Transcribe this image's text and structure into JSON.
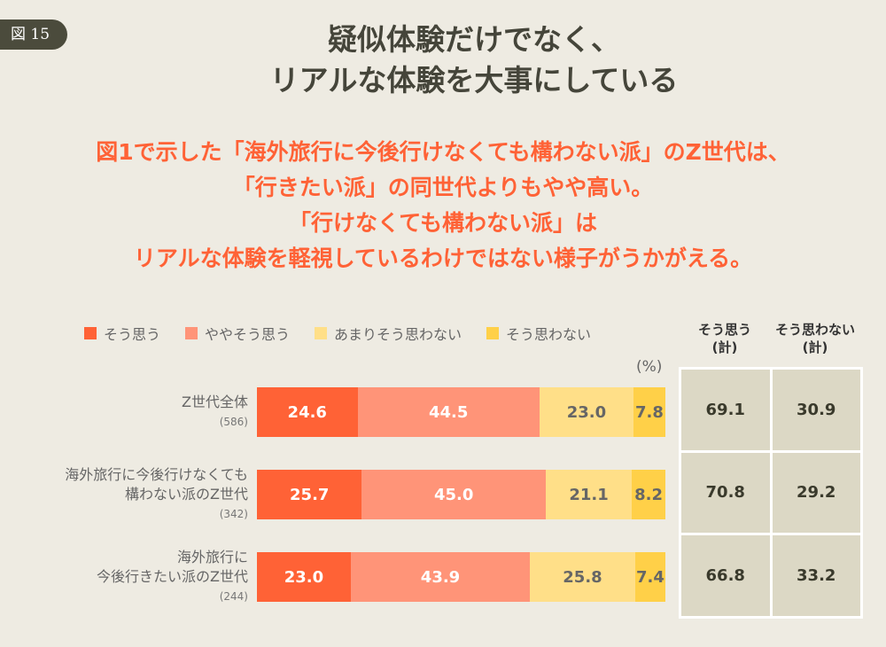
{
  "badge": "図 15",
  "title": [
    "疑似体験だけでなく、",
    "リアルな体験を大事にしている"
  ],
  "subtitle": [
    "図1で示した「海外旅行に今後行けなくても構わない派」のZ世代は、",
    "「行きたい派」の同世代よりもやや高い。",
    "「行けなくても構わない派」は",
    "リアルな体験を軽視しているわけではない様子がうかがえる。"
  ],
  "colors": {
    "background": "#EEEBE2",
    "accent": "#FF6236"
  },
  "chart_data": {
    "type": "bar",
    "stacked": true,
    "orientation": "horizontal",
    "unit": "(%)",
    "series": [
      {
        "name": "そう思う",
        "color": "#FF6236",
        "values": [
          24.6,
          25.7,
          23.0
        ]
      },
      {
        "name": "ややそう思う",
        "color": "#FF9478",
        "values": [
          44.5,
          45.0,
          43.9
        ]
      },
      {
        "name": "あまりそう思わない",
        "color": "#FFDF88",
        "values": [
          23.0,
          21.1,
          25.8
        ]
      },
      {
        "name": "そう思わない",
        "color": "#FFD048",
        "values": [
          7.8,
          8.2,
          7.4
        ]
      }
    ],
    "categories": [
      {
        "label": [
          "Z世代全体"
        ],
        "n": "(586)"
      },
      {
        "label": [
          "海外旅行に今後行けなくても",
          "構わない派のZ世代"
        ],
        "n": "(342)"
      },
      {
        "label": [
          "海外旅行に",
          "今後行きたい派のZ世代"
        ],
        "n": "(244)"
      }
    ],
    "table": {
      "headers": [
        [
          "そう思う",
          "(計)"
        ],
        [
          "そう思わない",
          "(計)"
        ]
      ],
      "rows": [
        [
          "69.1",
          "30.9"
        ],
        [
          "70.8",
          "29.2"
        ],
        [
          "66.8",
          "33.2"
        ]
      ]
    }
  }
}
